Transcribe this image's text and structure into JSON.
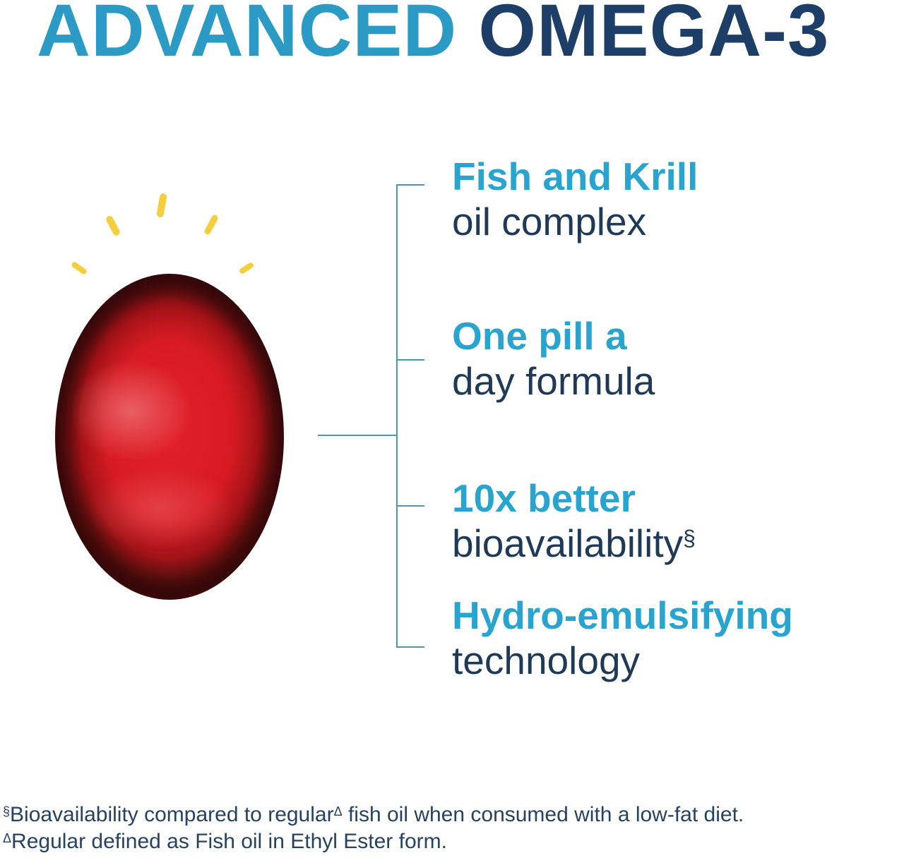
{
  "title": {
    "part1": "ADVANCED",
    "part2": " OMEGA-3"
  },
  "illustration": {
    "subject": "red softgel capsule with yellow sparkle rays",
    "sparkle_count": 5
  },
  "features": [
    {
      "highlight": "Fish and Krill",
      "rest": "oil complex",
      "superscript": ""
    },
    {
      "highlight": "One pill a",
      "rest": "day formula",
      "superscript": ""
    },
    {
      "highlight": "10x better",
      "rest": "bioavailability",
      "superscript": "§"
    },
    {
      "highlight": "Hydro-emulsifying",
      "rest": "technology",
      "superscript": ""
    }
  ],
  "footnotes": [
    {
      "symbol": "§",
      "text": "Bioavailability compared to regular",
      "sup": "Δ",
      "tail": " fish oil when consumed with a low-fat diet."
    },
    {
      "symbol": "Δ",
      "text": "Regular defined as Fish oil in Ethyl Ester form.",
      "sup": "",
      "tail": ""
    }
  ],
  "colors": {
    "title_light_blue": "#2B9BC6",
    "title_navy": "#1D3E66",
    "feature_blue": "#29A4CE",
    "feature_navy": "#1F3A57",
    "footnote_navy": "#27425F",
    "bracket_teal": "#4E96A2",
    "capsule_red": "#D81B22",
    "capsule_dark_rim": "#350B0C",
    "sparkle_yellow": "#F5CE3E",
    "background": "#FFFFFF"
  }
}
